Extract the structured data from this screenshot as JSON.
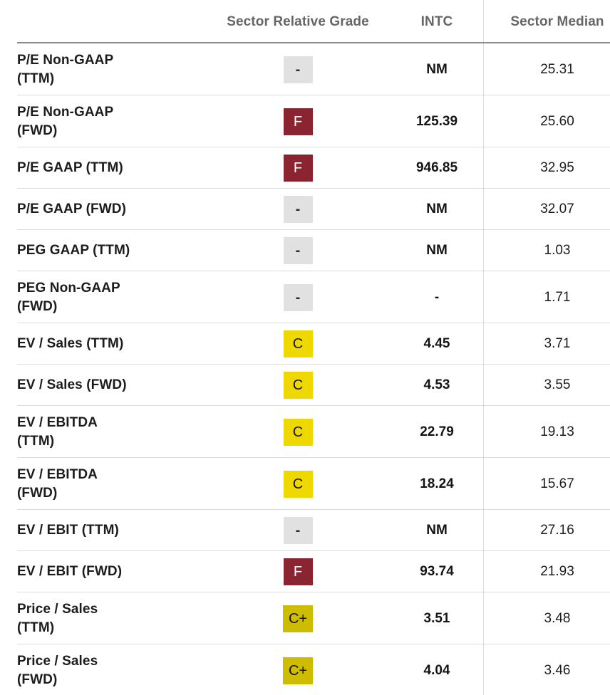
{
  "table": {
    "headers": {
      "metric": "",
      "grade": "Sector Relative Grade",
      "ticker": "INTC",
      "median": "Sector Median"
    },
    "rows": [
      {
        "metric": "P/E Non-GAAP\n(TTM)",
        "grade": "-",
        "grade_type": "na",
        "value": "NM",
        "median": "25.31"
      },
      {
        "metric": "P/E Non-GAAP\n(FWD)",
        "grade": "F",
        "grade_type": "f",
        "value": "125.39",
        "median": "25.60"
      },
      {
        "metric": "P/E GAAP (TTM)",
        "grade": "F",
        "grade_type": "f",
        "value": "946.85",
        "median": "32.95"
      },
      {
        "metric": "P/E GAAP (FWD)",
        "grade": "-",
        "grade_type": "na",
        "value": "NM",
        "median": "32.07"
      },
      {
        "metric": "PEG GAAP (TTM)",
        "grade": "-",
        "grade_type": "na",
        "value": "NM",
        "median": "1.03"
      },
      {
        "metric": "PEG Non-GAAP\n(FWD)",
        "grade": "-",
        "grade_type": "na",
        "value": "-",
        "median": "1.71"
      },
      {
        "metric": "EV / Sales (TTM)",
        "grade": "C",
        "grade_type": "c",
        "value": "4.45",
        "median": "3.71"
      },
      {
        "metric": "EV / Sales (FWD)",
        "grade": "C",
        "grade_type": "c",
        "value": "4.53",
        "median": "3.55"
      },
      {
        "metric": "EV / EBITDA\n(TTM)",
        "grade": "C",
        "grade_type": "c",
        "value": "22.79",
        "median": "19.13"
      },
      {
        "metric": "EV / EBITDA\n(FWD)",
        "grade": "C",
        "grade_type": "c",
        "value": "18.24",
        "median": "15.67"
      },
      {
        "metric": "EV / EBIT (TTM)",
        "grade": "-",
        "grade_type": "na",
        "value": "NM",
        "median": "27.16"
      },
      {
        "metric": "EV / EBIT (FWD)",
        "grade": "F",
        "grade_type": "f",
        "value": "93.74",
        "median": "21.93"
      },
      {
        "metric": "Price / Sales\n(TTM)",
        "grade": "C+",
        "grade_type": "cplus",
        "value": "3.51",
        "median": "3.48"
      },
      {
        "metric": "Price / Sales\n(FWD)",
        "grade": "C+",
        "grade_type": "cplus",
        "value": "4.04",
        "median": "3.46"
      }
    ]
  },
  "colors": {
    "grade_f_bg": "#8a2430",
    "grade_c_bg": "#efd700",
    "grade_cplus_bg": "#cdbc00",
    "grade_na_bg": "#e1e1e1"
  }
}
